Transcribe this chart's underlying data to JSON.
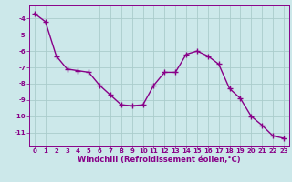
{
  "x": [
    0,
    1,
    2,
    3,
    4,
    5,
    6,
    7,
    8,
    9,
    10,
    11,
    12,
    13,
    14,
    15,
    16,
    17,
    18,
    19,
    20,
    21,
    22,
    23
  ],
  "y": [
    -3.7,
    -4.2,
    -6.3,
    -7.1,
    -7.2,
    -7.3,
    -8.1,
    -8.7,
    -9.3,
    -9.35,
    -9.3,
    -8.1,
    -7.3,
    -7.3,
    -6.2,
    -6.0,
    -6.3,
    -6.8,
    -8.3,
    -8.9,
    -10.0,
    -10.55,
    -11.2,
    -11.35
  ],
  "bg_color": "#cce8ea",
  "grid_color": "#aacccc",
  "line_color": "#880088",
  "marker_color": "#880088",
  "xlabel": "Windchill (Refroidissement éolien,°C)",
  "ylim": [
    -11.8,
    -3.2
  ],
  "xlim": [
    -0.5,
    23.5
  ],
  "yticks": [
    -11,
    -10,
    -9,
    -8,
    -7,
    -6,
    -5,
    -4
  ],
  "xticks": [
    0,
    1,
    2,
    3,
    4,
    5,
    6,
    7,
    8,
    9,
    10,
    11,
    12,
    13,
    14,
    15,
    16,
    17,
    18,
    19,
    20,
    21,
    22,
    23
  ],
  "tick_fontsize": 5.0,
  "xlabel_fontsize": 6.0,
  "linewidth": 1.0,
  "markersize": 4.0,
  "markeredgewidth": 1.0
}
